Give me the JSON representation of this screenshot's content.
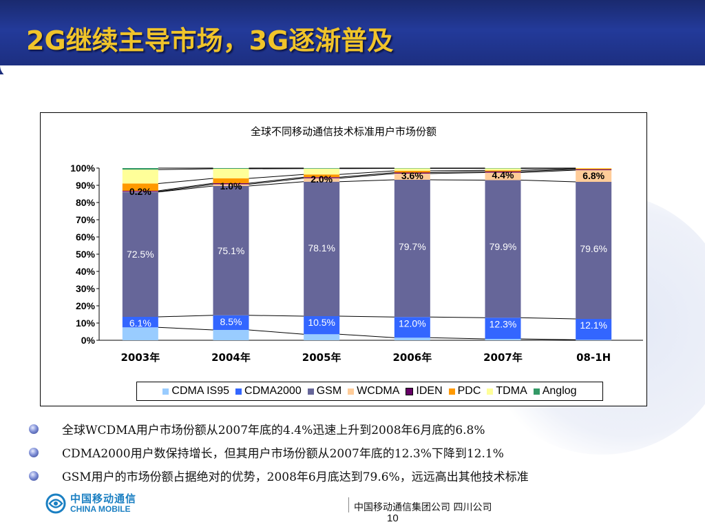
{
  "slide": {
    "title": "2G继续主导市场，3G逐渐普及",
    "page_number": "10",
    "footer_org": "中国移动通信集团公司  四川公司",
    "logo_cn": "中国移动通信",
    "logo_en": "CHINA MOBILE"
  },
  "bullets": [
    "全球WCDMA用户市场份额从2007年底的4.4%迅速上升到2008年6月底的6.8%",
    "CDMA2000用户数保持增长，但其用户市场份额从2007年底的12.3%下降到12.1%",
    "GSM用户的市场份额占据绝对的优势，2008年6月底达到79.6%，远远高出其他技术标准"
  ],
  "chart_data": {
    "type": "bar",
    "stacked": true,
    "percent_stacked": true,
    "title": "全球不同移动通信技术标准用户市场份额",
    "categories": [
      "2003年",
      "2004年",
      "2005年",
      "2006年",
      "2007年",
      "08-1H"
    ],
    "yticks": [
      "0%",
      "10%",
      "20%",
      "30%",
      "40%",
      "50%",
      "60%",
      "70%",
      "80%",
      "90%",
      "100%"
    ],
    "ylim": [
      0,
      100
    ],
    "legend_position": "bottom",
    "series_lines": true,
    "series": [
      {
        "name": "CDMA IS95",
        "color": "#99ccff",
        "values": [
          7.5,
          6.0,
          3.5,
          1.5,
          0.8,
          0.3
        ]
      },
      {
        "name": "CDMA2000",
        "color": "#3366ff",
        "values": [
          6.1,
          8.5,
          10.5,
          12.0,
          12.3,
          12.1
        ]
      },
      {
        "name": "GSM",
        "color": "#666699",
        "values": [
          72.5,
          75.1,
          78.1,
          79.7,
          79.9,
          79.6
        ]
      },
      {
        "name": "WCDMA",
        "color": "#ffcc99",
        "values": [
          0.2,
          1.0,
          2.0,
          3.6,
          4.4,
          6.8
        ]
      },
      {
        "name": "IDEN",
        "color": "#660066",
        "values": [
          0.5,
          0.6,
          0.6,
          0.6,
          0.6,
          0.5
        ]
      },
      {
        "name": "PDC",
        "color": "#ff9900",
        "values": [
          4.2,
          2.8,
          1.6,
          1.0,
          0.7,
          0.5
        ]
      },
      {
        "name": "TDMA",
        "color": "#ffff99",
        "values": [
          8.1,
          5.6,
          3.4,
          1.4,
          1.1,
          0.2
        ]
      },
      {
        "name": "Anglog",
        "color": "#339966",
        "values": [
          0.9,
          0.4,
          0.3,
          0.2,
          0.2,
          0.0
        ]
      }
    ],
    "data_labels": {
      "CDMA2000": [
        "6.1%",
        "8.5%",
        "10.5%",
        "12.0%",
        "12.3%",
        "12.1%"
      ],
      "GSM": [
        "72.5%",
        "75.1%",
        "78.1%",
        "79.7%",
        "79.9%",
        "79.6%"
      ],
      "WCDMA": [
        "0.2%",
        "1.0%",
        "2.0%",
        "3.6%",
        "4.4%",
        "6.8%"
      ]
    }
  }
}
